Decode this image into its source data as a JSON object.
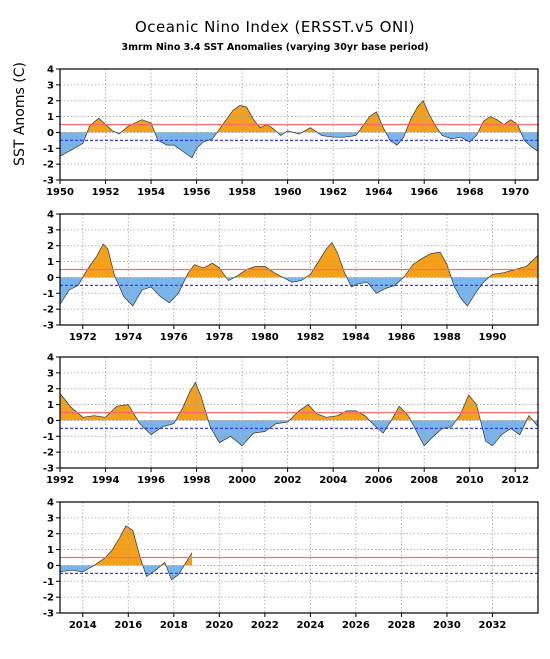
{
  "chart_data": {
    "type": "area",
    "title": "Oceanic Nino Index (ERSST.v5 ONI)",
    "subtitle": "3mrm Nino 3.4 SST Anomalies (varying 30yr base period)",
    "ylabel": "SST Anoms (C)",
    "ylim": [
      -3,
      4
    ],
    "yticks": [
      -3,
      -2,
      -1,
      0,
      1,
      2,
      3,
      4
    ],
    "thresholds": {
      "el_nino": 0.5,
      "la_nina": -0.5
    },
    "colors": {
      "positive": "#f5a01a",
      "negative": "#79b4ea",
      "el_nino_line": "#ff6a6a",
      "la_nina_line": "#3a3aff",
      "grid": "#a0a0a0"
    },
    "grid": true,
    "panels": [
      {
        "xlim": [
          1950,
          1971
        ],
        "xticks": [
          "1950",
          "1952",
          "1954",
          "1956",
          "1958",
          "1960",
          "1962",
          "1964",
          "1966",
          "1968",
          "1970"
        ]
      },
      {
        "xlim": [
          1971,
          1992
        ],
        "xticks": [
          "1972",
          "1974",
          "1976",
          "1978",
          "1980",
          "1982",
          "1984",
          "1986",
          "1988",
          "1990"
        ]
      },
      {
        "xlim": [
          1992,
          2013
        ],
        "xticks": [
          "1992",
          "1994",
          "1996",
          "1998",
          "2000",
          "2002",
          "2004",
          "2006",
          "2008",
          "2010",
          "2012"
        ]
      },
      {
        "xlim": [
          2013,
          2034
        ],
        "xticks": [
          "2014",
          "2016",
          "2018",
          "2020",
          "2022",
          "2024",
          "2026",
          "2028",
          "2030",
          "2032"
        ]
      }
    ],
    "series": [
      {
        "x": [
          1950.0,
          1950.5,
          1951.0,
          1951.3,
          1951.7,
          1952.0,
          1952.3,
          1952.6,
          1953.0,
          1953.3,
          1953.6,
          1954.0,
          1954.3,
          1954.7,
          1955.0,
          1955.4,
          1955.8,
          1956.0,
          1956.3,
          1956.7,
          1957.0,
          1957.3,
          1957.6,
          1957.9,
          1958.2,
          1958.5,
          1958.8,
          1959.1,
          1959.4,
          1959.7,
          1960.0,
          1960.5,
          1961.0,
          1961.5,
          1962.0,
          1962.5,
          1963.0,
          1963.3,
          1963.6,
          1963.9,
          1964.2,
          1964.5,
          1964.8,
          1965.1,
          1965.4,
          1965.7,
          1965.95,
          1966.2,
          1966.5,
          1966.8,
          1967.2,
          1967.6,
          1968.0,
          1968.3,
          1968.6,
          1968.9,
          1969.2,
          1969.5,
          1969.8,
          1970.1,
          1970.4,
          1970.7,
          1971.0
        ],
        "y": [
          -1.5,
          -1.1,
          -0.7,
          0.4,
          0.9,
          0.5,
          0.1,
          -0.1,
          0.4,
          0.6,
          0.8,
          0.6,
          -0.5,
          -0.8,
          -0.8,
          -1.2,
          -1.6,
          -1.0,
          -0.6,
          -0.4,
          0.2,
          0.8,
          1.4,
          1.7,
          1.6,
          0.8,
          0.3,
          0.5,
          0.2,
          -0.2,
          0.1,
          -0.1,
          0.3,
          -0.2,
          -0.3,
          -0.3,
          -0.2,
          0.4,
          1.0,
          1.3,
          0.3,
          -0.5,
          -0.8,
          -0.3,
          0.8,
          1.6,
          2.0,
          1.2,
          0.4,
          -0.2,
          -0.4,
          -0.3,
          -0.6,
          -0.2,
          0.7,
          1.0,
          0.8,
          0.5,
          0.8,
          0.5,
          -0.5,
          -0.9,
          -1.2
        ]
      },
      {
        "x": [
          1971.0,
          1971.4,
          1971.8,
          1972.2,
          1972.6,
          1972.9,
          1973.1,
          1973.4,
          1973.8,
          1974.2,
          1974.6,
          1975.0,
          1975.4,
          1975.8,
          1976.2,
          1976.6,
          1976.9,
          1977.3,
          1977.7,
          1978.0,
          1978.4,
          1978.8,
          1979.2,
          1979.6,
          1980.0,
          1980.4,
          1980.8,
          1981.2,
          1981.6,
          1982.0,
          1982.4,
          1982.7,
          1982.95,
          1983.2,
          1983.5,
          1983.8,
          1984.1,
          1984.5,
          1984.9,
          1985.3,
          1985.7,
          1986.1,
          1986.5,
          1986.9,
          1987.3,
          1987.7,
          1988.0,
          1988.3,
          1988.6,
          1988.9,
          1989.2,
          1989.6,
          1990.0,
          1990.5,
          1991.0,
          1991.5,
          1992.0
        ],
        "y": [
          -1.7,
          -0.8,
          -0.5,
          0.5,
          1.3,
          2.1,
          1.8,
          0.1,
          -1.2,
          -1.8,
          -0.8,
          -0.6,
          -1.2,
          -1.6,
          -1.0,
          0.2,
          0.8,
          0.6,
          0.9,
          0.6,
          -0.2,
          0.1,
          0.5,
          0.7,
          0.7,
          0.3,
          0.0,
          -0.3,
          -0.2,
          0.2,
          1.1,
          1.8,
          2.2,
          1.5,
          0.3,
          -0.6,
          -0.4,
          -0.3,
          -1.0,
          -0.7,
          -0.5,
          0.0,
          0.8,
          1.2,
          1.5,
          1.6,
          0.8,
          -0.5,
          -1.3,
          -1.8,
          -1.1,
          -0.3,
          0.2,
          0.3,
          0.5,
          0.7,
          1.4
        ]
      },
      {
        "x": [
          1992.0,
          1992.5,
          1993.0,
          1993.5,
          1994.0,
          1994.5,
          1995.0,
          1995.5,
          1996.0,
          1996.5,
          1997.0,
          1997.4,
          1997.7,
          1997.95,
          1998.2,
          1998.6,
          1999.0,
          1999.5,
          2000.0,
          2000.5,
          2001.0,
          2001.5,
          2002.0,
          2002.5,
          2002.9,
          2003.3,
          2003.7,
          2004.2,
          2004.6,
          2005.0,
          2005.4,
          2005.8,
          2006.2,
          2006.6,
          2006.9,
          2007.3,
          2007.7,
          2008.0,
          2008.4,
          2008.8,
          2009.2,
          2009.6,
          2009.95,
          2010.3,
          2010.7,
          2011.0,
          2011.4,
          2011.8,
          2012.2,
          2012.6,
          2013.0
        ],
        "y": [
          1.7,
          0.8,
          0.2,
          0.3,
          0.2,
          0.9,
          1.0,
          -0.2,
          -0.9,
          -0.4,
          -0.2,
          0.8,
          1.8,
          2.4,
          1.5,
          -0.4,
          -1.4,
          -1.0,
          -1.6,
          -0.8,
          -0.7,
          -0.2,
          -0.1,
          0.6,
          1.0,
          0.4,
          0.2,
          0.3,
          0.6,
          0.6,
          0.3,
          -0.3,
          -0.8,
          0.1,
          0.9,
          0.3,
          -0.8,
          -1.6,
          -1.0,
          -0.5,
          -0.4,
          0.4,
          1.6,
          1.0,
          -1.3,
          -1.6,
          -0.9,
          -0.5,
          -0.9,
          0.3,
          -0.4
        ]
      },
      {
        "x": [
          2013.0,
          2013.5,
          2014.0,
          2014.5,
          2015.0,
          2015.3,
          2015.6,
          2015.9,
          2016.2,
          2016.5,
          2016.8,
          2017.2,
          2017.6,
          2017.9,
          2018.2,
          2018.5,
          2018.8
        ],
        "y": [
          -0.4,
          -0.3,
          -0.4,
          0.0,
          0.5,
          1.0,
          1.7,
          2.5,
          2.2,
          0.6,
          -0.7,
          -0.3,
          0.2,
          -0.9,
          -0.6,
          0.1,
          0.8
        ]
      }
    ]
  }
}
